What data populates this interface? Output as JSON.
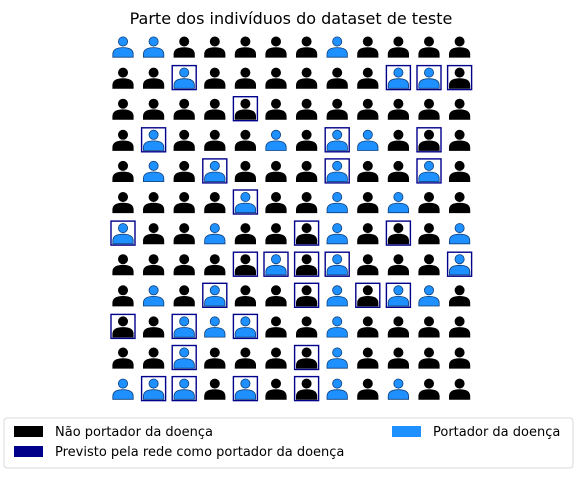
{
  "chart_data": {
    "type": "pictogram",
    "title": "Parte dos indivíduos do dataset de teste",
    "grid": {
      "rows": 12,
      "cols": 12
    },
    "cell_codes": {
      "0": "Não portador da doença",
      "1": "Portador da doença"
    },
    "cells": [
      [
        1,
        1,
        0,
        0,
        0,
        0,
        0,
        1,
        0,
        0,
        0,
        0
      ],
      [
        0,
        0,
        1,
        0,
        0,
        0,
        0,
        0,
        0,
        1,
        1,
        0
      ],
      [
        0,
        0,
        0,
        0,
        0,
        0,
        0,
        0,
        0,
        0,
        0,
        0
      ],
      [
        0,
        1,
        0,
        0,
        0,
        1,
        0,
        1,
        1,
        0,
        0,
        0
      ],
      [
        0,
        1,
        0,
        1,
        0,
        0,
        0,
        1,
        0,
        0,
        1,
        0
      ],
      [
        0,
        0,
        0,
        0,
        1,
        0,
        0,
        1,
        0,
        1,
        0,
        0
      ],
      [
        1,
        0,
        0,
        1,
        0,
        0,
        0,
        1,
        0,
        0,
        0,
        1
      ],
      [
        0,
        0,
        0,
        0,
        0,
        1,
        0,
        1,
        0,
        0,
        0,
        1
      ],
      [
        0,
        1,
        0,
        1,
        0,
        0,
        0,
        1,
        0,
        1,
        1,
        0
      ],
      [
        0,
        0,
        1,
        1,
        1,
        0,
        0,
        1,
        0,
        0,
        0,
        0
      ],
      [
        0,
        0,
        1,
        0,
        0,
        0,
        0,
        1,
        0,
        0,
        0,
        0
      ],
      [
        1,
        1,
        1,
        0,
        1,
        0,
        0,
        1,
        0,
        1,
        0,
        0
      ]
    ],
    "predicted_positive": [
      [
        0,
        0,
        0,
        0,
        0,
        0,
        0,
        0,
        0,
        0,
        0,
        0
      ],
      [
        0,
        0,
        1,
        0,
        0,
        0,
        0,
        0,
        0,
        1,
        1,
        1
      ],
      [
        0,
        0,
        0,
        0,
        1,
        0,
        0,
        0,
        0,
        0,
        0,
        0
      ],
      [
        0,
        1,
        0,
        0,
        0,
        0,
        0,
        1,
        0,
        0,
        1,
        0
      ],
      [
        0,
        0,
        0,
        1,
        0,
        0,
        0,
        1,
        0,
        0,
        1,
        0
      ],
      [
        0,
        0,
        0,
        0,
        1,
        0,
        0,
        0,
        0,
        0,
        0,
        0
      ],
      [
        1,
        0,
        0,
        0,
        0,
        0,
        1,
        0,
        0,
        1,
        0,
        0
      ],
      [
        0,
        0,
        0,
        0,
        1,
        1,
        1,
        1,
        0,
        0,
        0,
        1
      ],
      [
        0,
        0,
        0,
        1,
        0,
        0,
        1,
        0,
        1,
        1,
        0,
        0
      ],
      [
        1,
        0,
        1,
        0,
        1,
        0,
        0,
        0,
        0,
        0,
        0,
        0
      ],
      [
        0,
        0,
        1,
        0,
        0,
        0,
        1,
        0,
        0,
        0,
        0,
        0
      ],
      [
        0,
        1,
        1,
        0,
        1,
        0,
        1,
        0,
        0,
        0,
        0,
        0
      ]
    ],
    "legend": {
      "placement": "bottom",
      "entries": [
        {
          "label": "Não portador da doença",
          "color": "#000000",
          "column": 0
        },
        {
          "label": "Previsto pela rede como portador da doença",
          "color": "#00008b",
          "column": 0
        },
        {
          "label": "Portador da doença",
          "color": "#1e90ff",
          "column": 1
        }
      ]
    }
  },
  "colors": {
    "not_carrier": "#000000",
    "carrier": "#1e90ff",
    "predicted_outline": "#00008b"
  }
}
